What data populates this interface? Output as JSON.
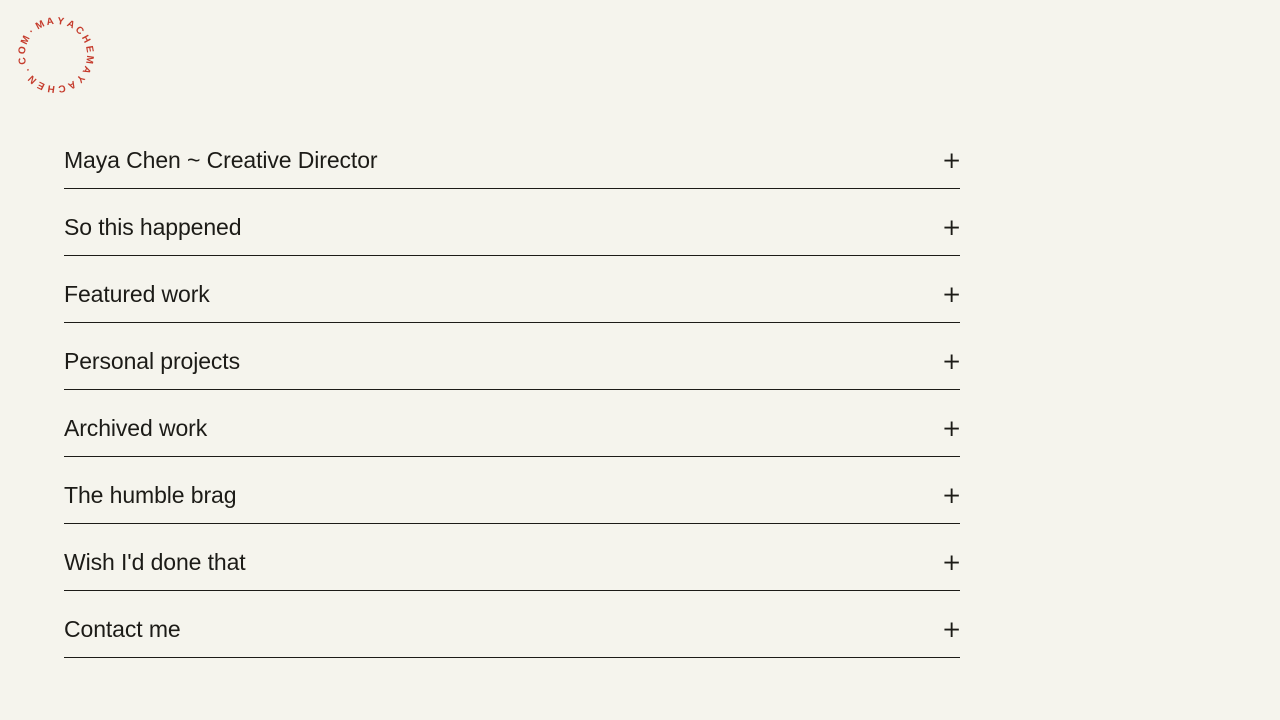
{
  "page": {
    "background_color": "#f5f4ed",
    "text_color": "#1c1b17"
  },
  "logo": {
    "circular_text": "MAYACHEMAYACHEN.COM·",
    "color": "#c53b2c"
  },
  "accordion": {
    "plus_glyph": "+",
    "items": [
      {
        "label": "Maya Chen ~ Creative Director"
      },
      {
        "label": "So this happened"
      },
      {
        "label": "Featured work"
      },
      {
        "label": "Personal projects"
      },
      {
        "label": "Archived work"
      },
      {
        "label": "The humble brag"
      },
      {
        "label": "Wish I'd done that"
      },
      {
        "label": "Contact me"
      }
    ]
  }
}
